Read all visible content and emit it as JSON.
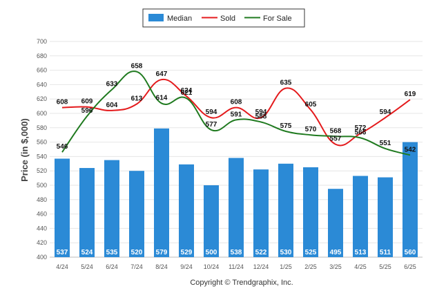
{
  "chart_data": {
    "type": "bar",
    "categories": [
      "4/24",
      "5/24",
      "6/24",
      "7/24",
      "8/24",
      "9/24",
      "10/24",
      "11/24",
      "12/24",
      "1/25",
      "2/25",
      "3/25",
      "4/25",
      "5/25",
      "6/25"
    ],
    "series": [
      {
        "name": "Median",
        "type": "bar",
        "color": "#2b8ad6",
        "values": [
          537,
          524,
          535,
          520,
          579,
          529,
          500,
          538,
          522,
          530,
          525,
          495,
          513,
          511,
          560
        ]
      },
      {
        "name": "Sold",
        "type": "line",
        "color": "#e41a1c",
        "values": [
          608,
          609,
          604,
          613,
          647,
          624,
          594,
          608,
          594,
          635,
          605,
          557,
          572,
          594,
          619
        ]
      },
      {
        "name": "For Sale",
        "type": "line",
        "color": "#1f7a1f",
        "values": [
          546,
          596,
          633,
          658,
          614,
          621,
          577,
          591,
          588,
          575,
          570,
          568,
          566,
          551,
          542
        ]
      }
    ],
    "ylabel": "Price (in $,000)",
    "xlabel": "",
    "ylim": [
      400,
      700
    ],
    "yticks": [
      400,
      420,
      440,
      460,
      480,
      500,
      520,
      540,
      560,
      580,
      600,
      620,
      640,
      660,
      680,
      700
    ],
    "grid": true,
    "legend_position": "top-center",
    "footer": "Copyright © Trendgraphix, Inc."
  }
}
